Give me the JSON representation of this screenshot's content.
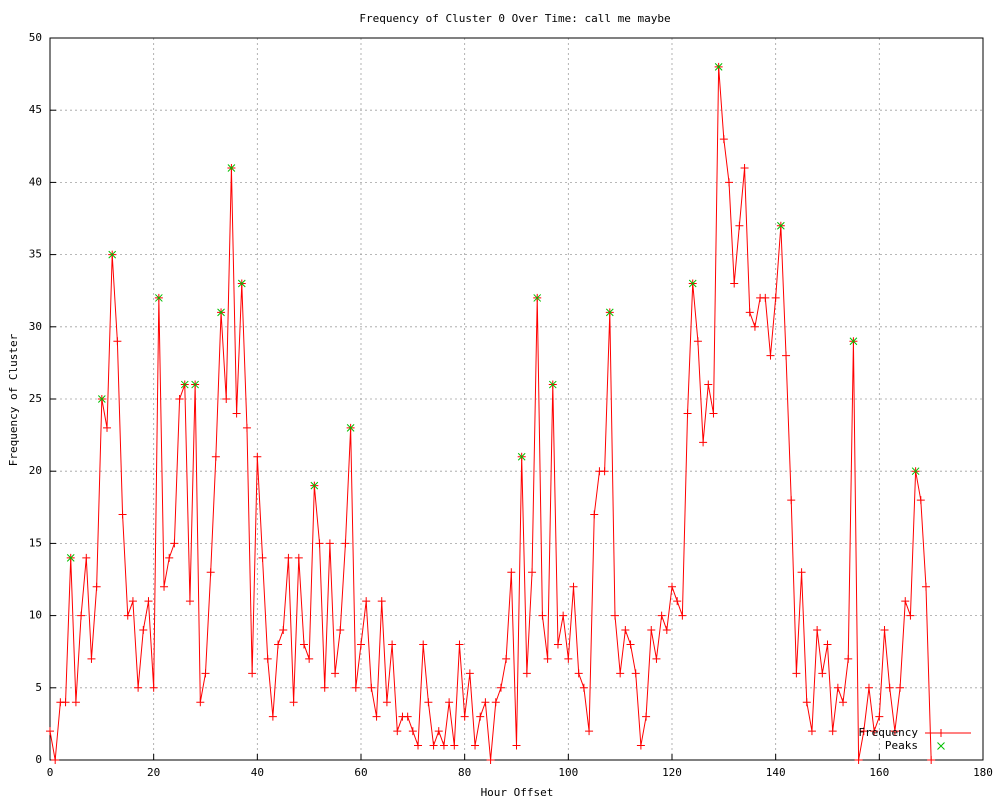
{
  "chart_data": {
    "type": "line",
    "title": "Frequency of Cluster 0 Over Time: call me maybe",
    "x_label": "Hour Offset",
    "y_label": "Frequency of Cluster",
    "x": [
      0,
      1,
      2,
      3,
      4,
      5,
      6,
      7,
      8,
      9,
      10,
      11,
      12,
      13,
      14,
      15,
      16,
      17,
      18,
      19,
      20,
      21,
      22,
      23,
      24,
      25,
      26,
      27,
      28,
      29,
      30,
      31,
      32,
      33,
      34,
      35,
      36,
      37,
      38,
      39,
      40,
      41,
      42,
      43,
      44,
      45,
      46,
      47,
      48,
      49,
      50,
      51,
      52,
      53,
      54,
      55,
      56,
      57,
      58,
      59,
      60,
      61,
      62,
      63,
      64,
      65,
      66,
      67,
      68,
      69,
      70,
      71,
      72,
      73,
      74,
      75,
      76,
      77,
      78,
      79,
      80,
      81,
      82,
      83,
      84,
      85,
      86,
      87,
      88,
      89,
      90,
      91,
      92,
      93,
      94,
      95,
      96,
      97,
      98,
      99,
      100,
      101,
      102,
      103,
      104,
      105,
      106,
      107,
      108,
      109,
      110,
      111,
      112,
      113,
      114,
      115,
      116,
      117,
      118,
      119,
      120,
      121,
      122,
      123,
      124,
      125,
      126,
      127,
      128,
      129,
      130,
      131,
      132,
      133,
      134,
      135,
      136,
      137,
      138,
      139,
      140,
      141,
      142,
      143,
      144,
      145,
      146,
      147,
      148,
      149,
      150,
      151,
      152,
      153,
      154,
      155,
      156,
      157,
      158,
      159,
      160,
      161,
      162,
      163,
      164,
      165,
      166,
      167,
      168,
      169,
      170
    ],
    "series": [
      {
        "name": "Frequency",
        "color": "#ff0000",
        "marker": "plus",
        "values": [
          2,
          0,
          4,
          4,
          14,
          4,
          10,
          14,
          7,
          12,
          25,
          23,
          35,
          29,
          17,
          10,
          11,
          5,
          9,
          11,
          5,
          32,
          12,
          14,
          15,
          25,
          26,
          11,
          26,
          4,
          6,
          13,
          21,
          31,
          25,
          41,
          24,
          33,
          23,
          6,
          21,
          14,
          7,
          3,
          8,
          9,
          14,
          4,
          14,
          8,
          7,
          19,
          15,
          5,
          15,
          6,
          9,
          15,
          23,
          5,
          8,
          11,
          5,
          3,
          11,
          4,
          8,
          2,
          3,
          3,
          2,
          1,
          8,
          4,
          1,
          2,
          1,
          4,
          1,
          8,
          3,
          6,
          1,
          3,
          4,
          0,
          4,
          5,
          7,
          13,
          1,
          21,
          6,
          13,
          32,
          10,
          7,
          26,
          8,
          10,
          7,
          12,
          6,
          5,
          2,
          17,
          20,
          20,
          31,
          10,
          6,
          9,
          8,
          6,
          1,
          3,
          9,
          7,
          10,
          9,
          12,
          11,
          10,
          24,
          33,
          29,
          22,
          26,
          24,
          48,
          43,
          40,
          33,
          37,
          41,
          31,
          30,
          32,
          32,
          28,
          32,
          37,
          28,
          18,
          6,
          13,
          4,
          2,
          9,
          6,
          8,
          2,
          5,
          4,
          7,
          29,
          0,
          2,
          5,
          2,
          3,
          9,
          5,
          2,
          5,
          11,
          10,
          20,
          18,
          12,
          0
        ]
      },
      {
        "name": "Peaks",
        "color": "#00c000",
        "marker": "cross",
        "lines": false,
        "x": [
          4,
          10,
          12,
          21,
          26,
          28,
          33,
          35,
          37,
          51,
          58,
          91,
          94,
          97,
          108,
          124,
          129,
          141,
          155,
          167
        ],
        "values": [
          14,
          25,
          35,
          32,
          26,
          26,
          31,
          41,
          33,
          19,
          23,
          21,
          32,
          26,
          31,
          33,
          48,
          37,
          29,
          20
        ]
      }
    ],
    "xlim": [
      0,
      180
    ],
    "xticks": [
      0,
      20,
      40,
      60,
      80,
      100,
      120,
      140,
      160,
      180
    ],
    "ylim": [
      0,
      50
    ],
    "yticks": [
      0,
      5,
      10,
      15,
      20,
      25,
      30,
      35,
      40,
      45,
      50
    ],
    "grid": true,
    "legend": "bottom-right"
  }
}
